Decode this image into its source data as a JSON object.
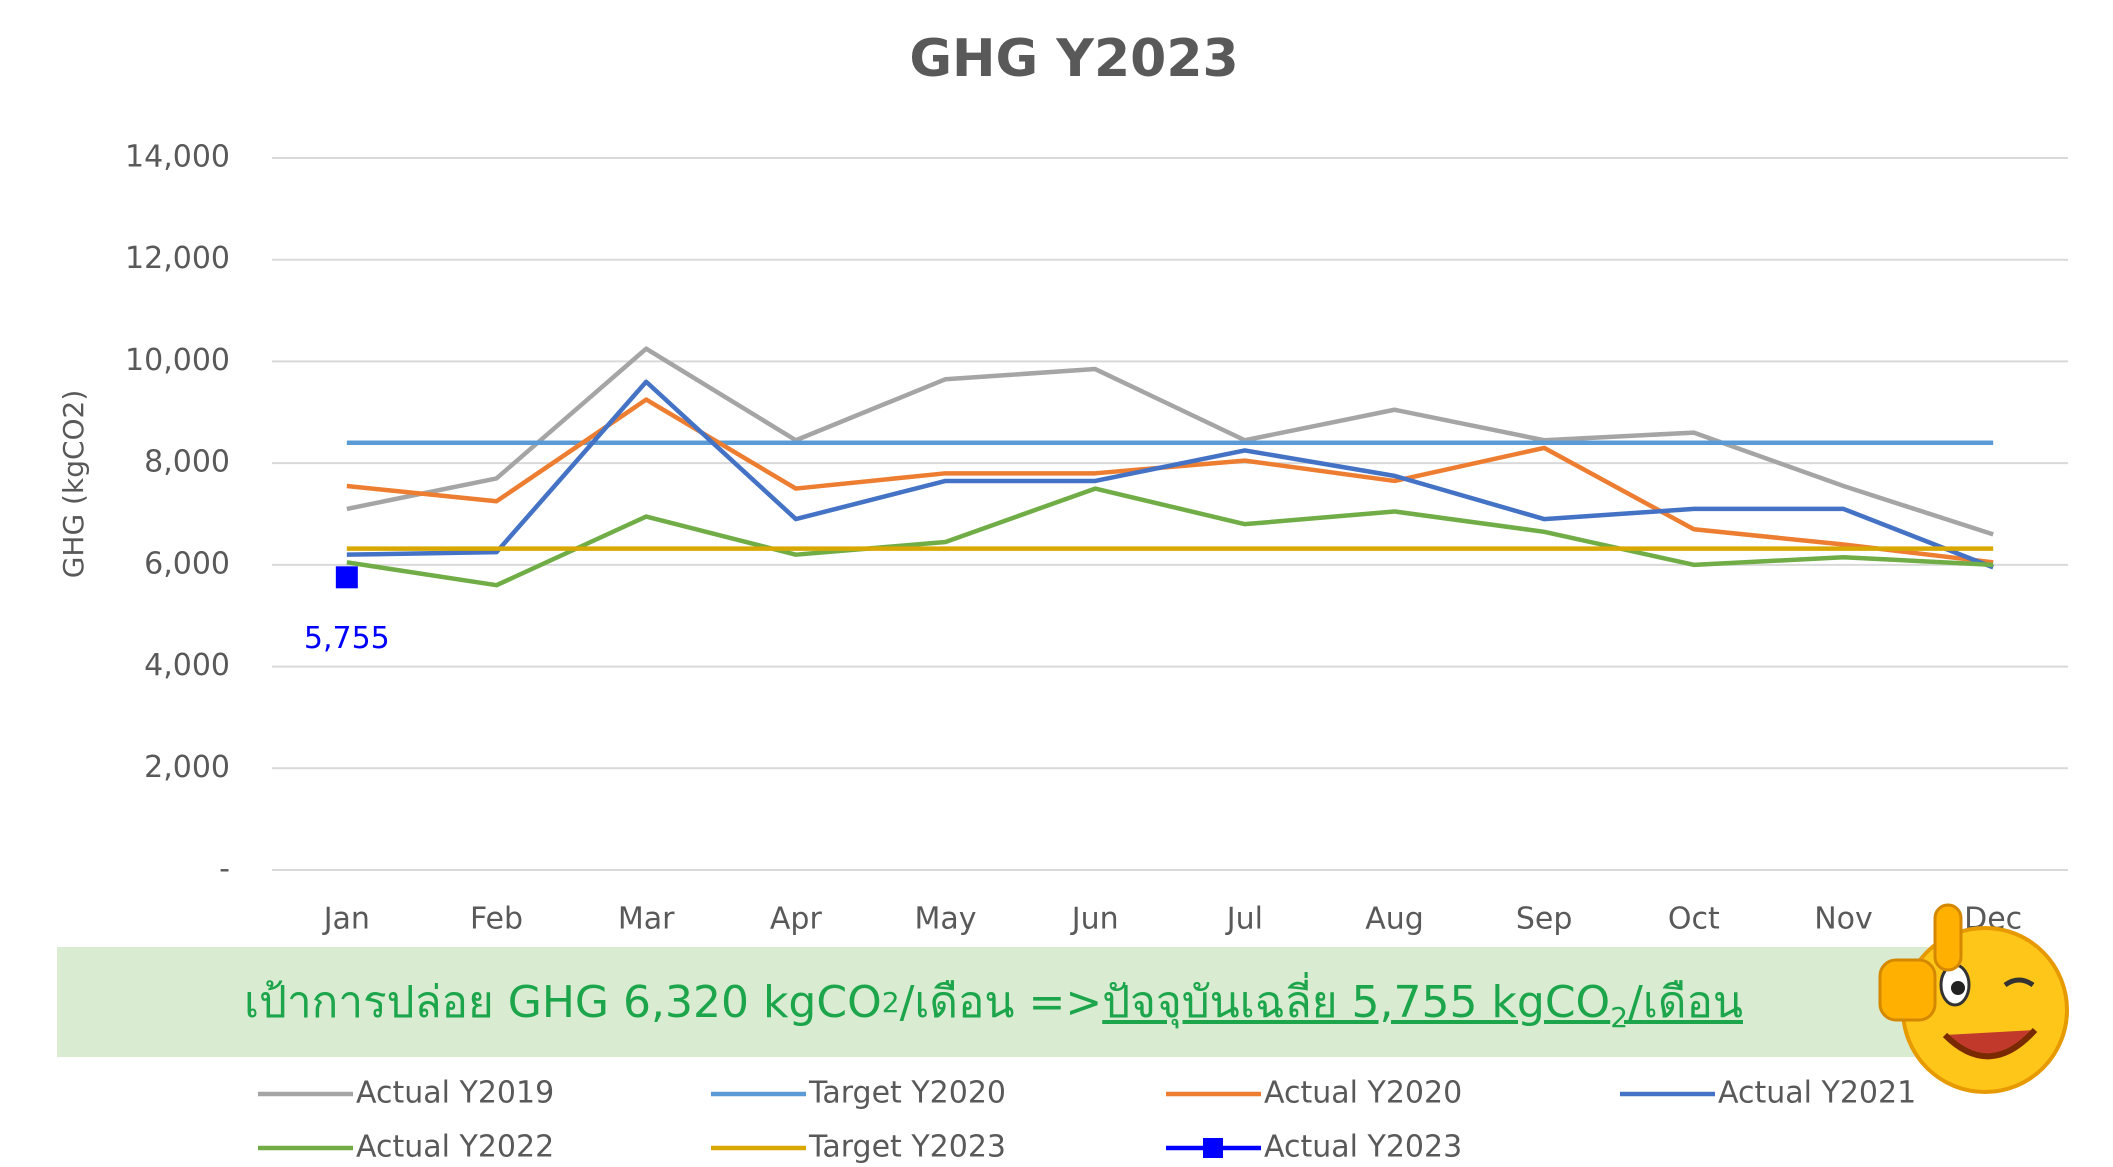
{
  "chart_data": {
    "type": "line",
    "title": "GHG Y2023",
    "y_label": "GHG (kgCO2)",
    "categories": [
      "Jan",
      "Feb",
      "Mar",
      "Apr",
      "May",
      "Jun",
      "Jul",
      "Aug",
      "Sep",
      "Oct",
      "Nov",
      "Dec"
    ],
    "ylim": [
      0,
      14000
    ],
    "yticks": [
      {
        "value": 0,
        "label": "-"
      },
      {
        "value": 2000,
        "label": "2,000"
      },
      {
        "value": 4000,
        "label": "4,000"
      },
      {
        "value": 6000,
        "label": "6,000"
      },
      {
        "value": 8000,
        "label": "8,000"
      },
      {
        "value": 10000,
        "label": "10,000"
      },
      {
        "value": 12000,
        "label": "12,000"
      },
      {
        "value": 14000,
        "label": "14,000"
      }
    ],
    "grid": true,
    "legend": "bottom",
    "series": [
      {
        "name": "Actual Y2019",
        "color": "#a5a5a5",
        "values": [
          7100,
          7700,
          10250,
          8450,
          9650,
          9850,
          8450,
          9050,
          8450,
          8600,
          7550,
          6600
        ]
      },
      {
        "name": "Target Y2020",
        "color": "#5b9bd5",
        "values": [
          8400,
          8400,
          8400,
          8400,
          8400,
          8400,
          8400,
          8400,
          8400,
          8400,
          8400,
          8400
        ]
      },
      {
        "name": "Actual Y2020",
        "color": "#ed7d31",
        "values": [
          7550,
          7250,
          9250,
          7500,
          7800,
          7800,
          8050,
          7650,
          8300,
          6700,
          6400,
          6050
        ]
      },
      {
        "name": "Actual Y2021",
        "color": "#4472c4",
        "values": [
          6200,
          6250,
          9600,
          6900,
          7650,
          7650,
          8250,
          7750,
          6900,
          7100,
          7100,
          5950
        ]
      },
      {
        "name": "Actual Y2022",
        "color": "#70ad47",
        "values": [
          6050,
          5600,
          6950,
          6200,
          6450,
          7500,
          6800,
          7050,
          6650,
          6000,
          6150,
          6000
        ]
      },
      {
        "name": "Target Y2023",
        "color": "#d9a800",
        "values": [
          6320,
          6320,
          6320,
          6320,
          6320,
          6320,
          6320,
          6320,
          6320,
          6320,
          6320,
          6320
        ]
      },
      {
        "name": "Actual Y2023",
        "color": "#0000ff",
        "marker": "square",
        "values": [
          5755,
          null,
          null,
          null,
          null,
          null,
          null,
          null,
          null,
          null,
          null,
          null
        ],
        "value_labels": [
          "5,755",
          null,
          null,
          null,
          null,
          null,
          null,
          null,
          null,
          null,
          null,
          null
        ]
      }
    ],
    "banner": [
      "เป้าการปล่อย GHG 6,320 kgCO",
      "2",
      "/เดือน => ",
      "ปัจจุบันเฉลี่ย 5,755 kgCO",
      "2",
      "/เดือน"
    ]
  }
}
